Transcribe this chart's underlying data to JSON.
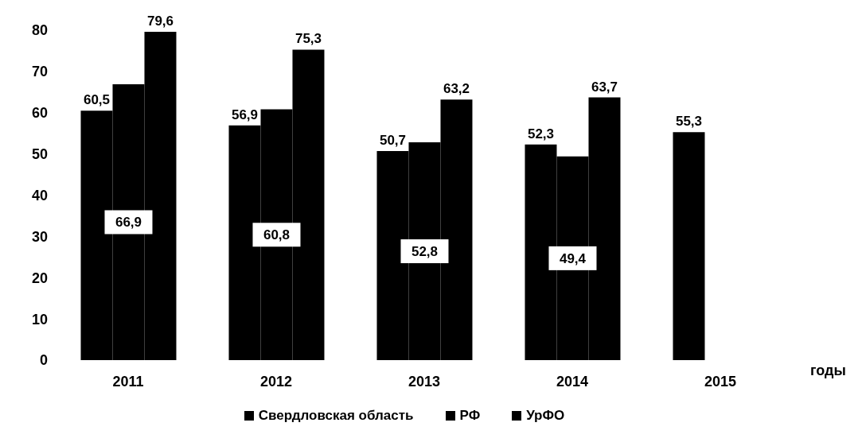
{
  "chart_data": {
    "type": "bar",
    "xlabel": "годы",
    "categories": [
      "2011",
      "2012",
      "2013",
      "2014",
      "2015"
    ],
    "series": [
      {
        "name": "Свердловская область",
        "color": "#000000",
        "values": [
          60.5,
          56.9,
          50.7,
          52.3,
          55.3
        ],
        "value_labels": [
          "60,5",
          "56,9",
          "50,7",
          "52,3",
          "55,3"
        ]
      },
      {
        "name": "РФ",
        "color": "#000000",
        "values": [
          66.9,
          60.8,
          52.8,
          49.4,
          null
        ],
        "value_labels": [
          "66,9",
          "60,8",
          "52,8",
          "49,4",
          null
        ]
      },
      {
        "name": "УрФО",
        "color": "#000000",
        "values": [
          79.6,
          75.3,
          63.2,
          63.7,
          null
        ],
        "value_labels": [
          "79,6",
          "75,3",
          "63,2",
          "63,7",
          null
        ]
      }
    ],
    "ylim": [
      0,
      80
    ],
    "yticks": [
      0,
      10,
      20,
      30,
      40,
      50,
      60,
      70,
      80
    ],
    "grid": false,
    "legend": "bottom"
  }
}
